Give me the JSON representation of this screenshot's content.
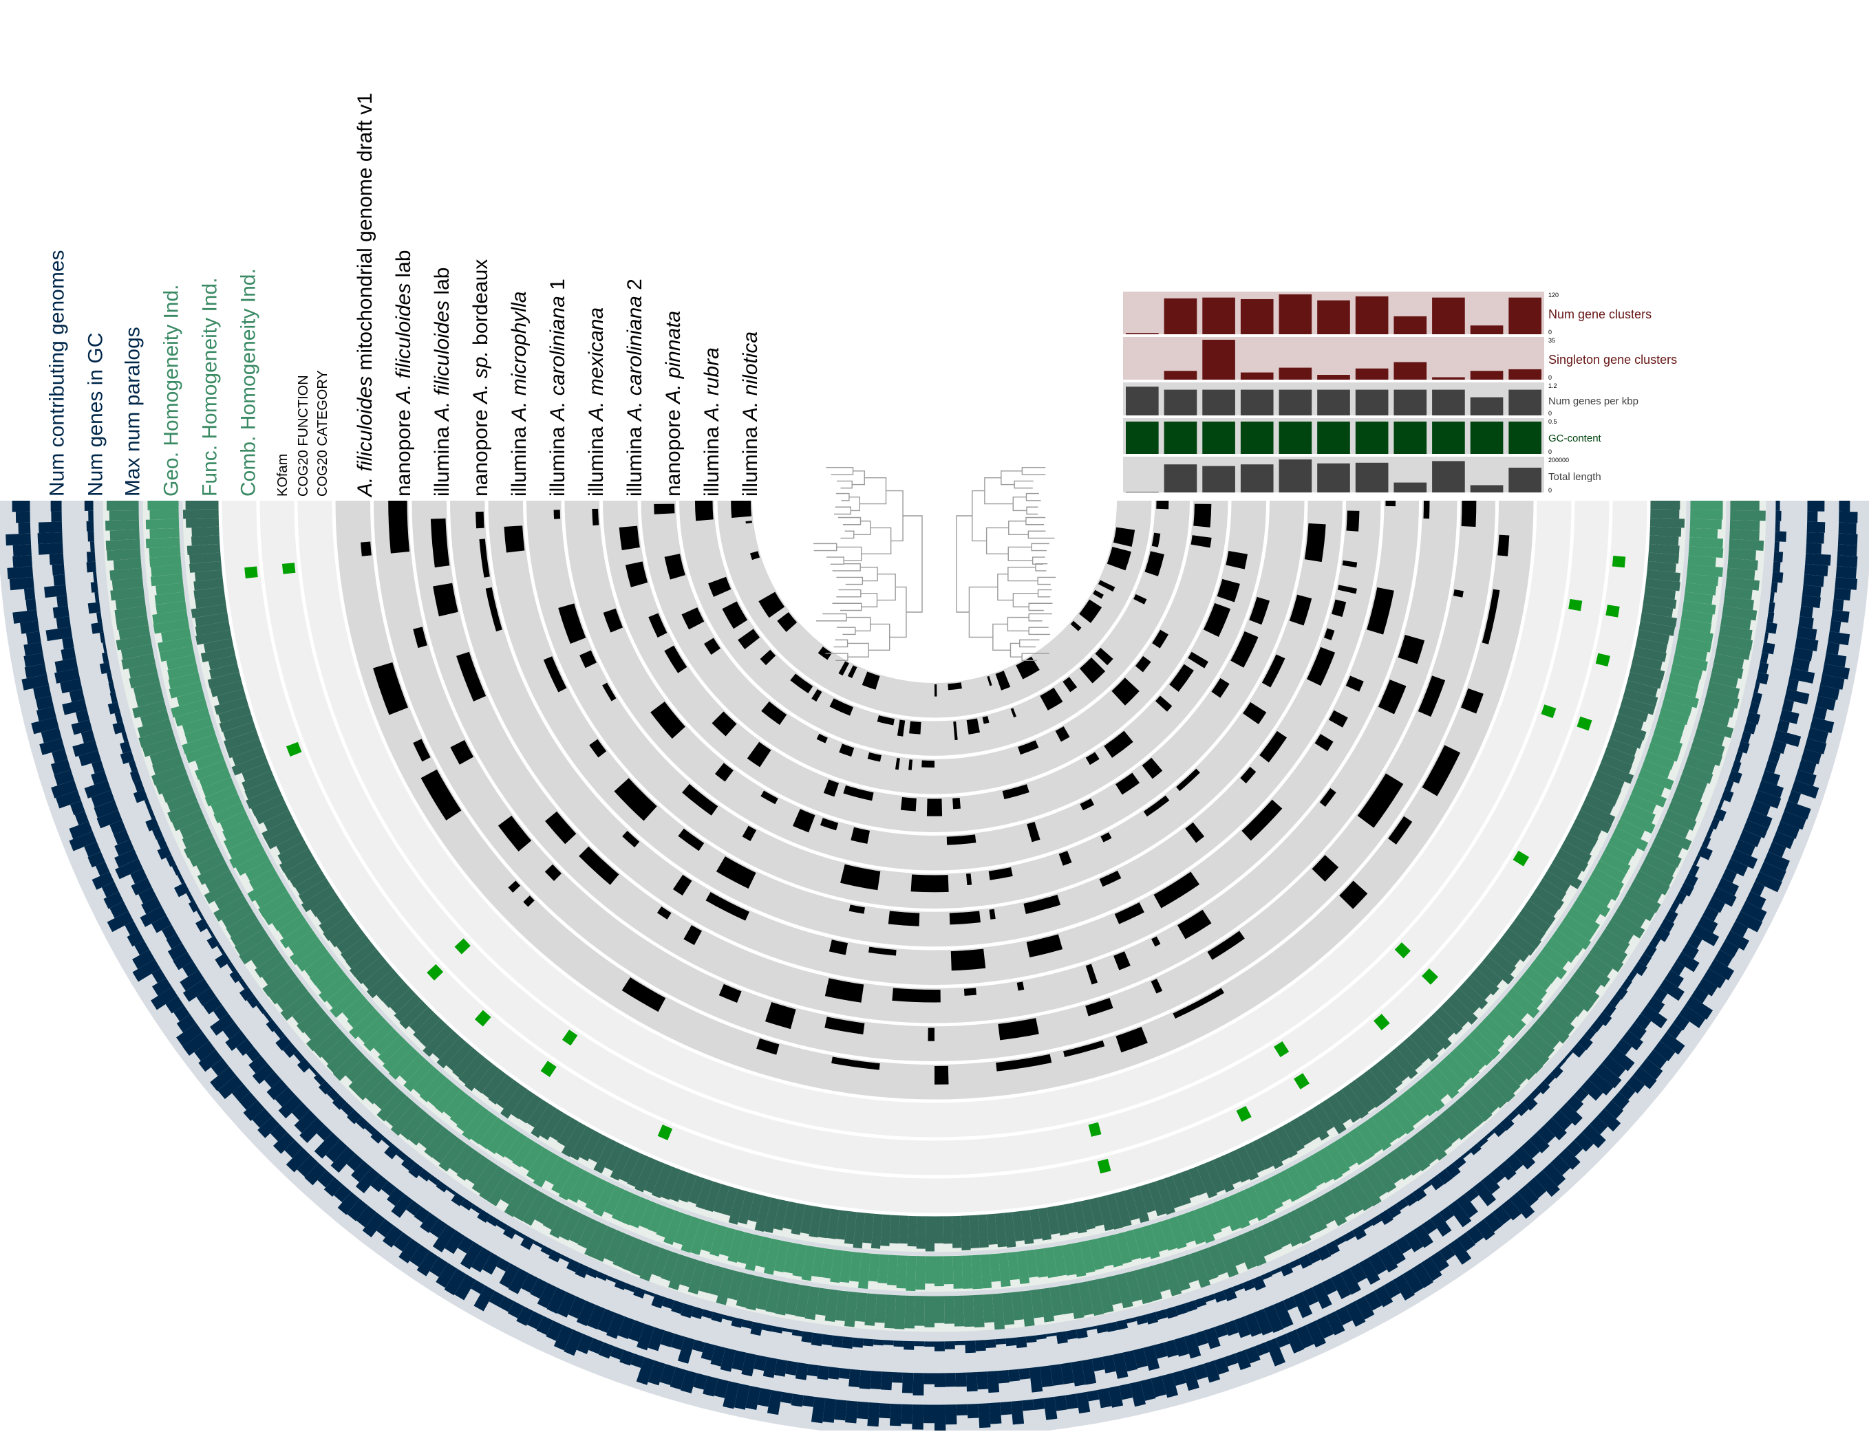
{
  "layer_labels": [
    {
      "id": "num-contributing",
      "text": "Num contributing genomes",
      "color": "#00274a"
    },
    {
      "id": "num-genes-gc",
      "text": "Num genes in GC",
      "color": "#00274a"
    },
    {
      "id": "max-paralogs",
      "text": "Max num paralogs",
      "color": "#00274a"
    },
    {
      "id": "geo-homog",
      "text": "Geo. Homogeneity Ind.",
      "color": "#3a8a64"
    },
    {
      "id": "func-homog",
      "text": "Func. Homogeneity Ind.",
      "color": "#3a8a64"
    },
    {
      "id": "comb-homog",
      "text": "Comb. Homogeneity Ind.",
      "color": "#3a8a64"
    },
    {
      "id": "kofam",
      "text": "KOfam",
      "color": "#000000"
    },
    {
      "id": "cog20-function",
      "text": "COG20 FUNCTION",
      "color": "#000000"
    },
    {
      "id": "cog20-category",
      "text": "COG20 CATEGORY",
      "color": "#000000"
    }
  ],
  "genomes": [
    {
      "italic": "A. filiculoides",
      "rest": " mitochondrial genome draft v1",
      "prefix": ""
    },
    {
      "prefix": "nanopore ",
      "italic": "A. filiculoides",
      "rest": " lab"
    },
    {
      "prefix": "illumina ",
      "italic": "A. filiculoides",
      "rest": " lab"
    },
    {
      "prefix": "nanopore ",
      "italic": "A. sp.",
      "rest": " bordeaux"
    },
    {
      "prefix": "illumina ",
      "italic": "A. microphylla",
      "rest": ""
    },
    {
      "prefix": "illumina ",
      "italic": "A. caroliniana",
      "rest": " 1"
    },
    {
      "prefix": "illumina ",
      "italic": "A. mexicana",
      "rest": ""
    },
    {
      "prefix": "illumina ",
      "italic": "A. caroliniana",
      "rest": " 2"
    },
    {
      "prefix": "nanopore ",
      "italic": "A. pinnata",
      "rest": ""
    },
    {
      "prefix": "illumina ",
      "italic": "A. rubra",
      "rest": ""
    },
    {
      "prefix": "illumina ",
      "italic": "A. nilotica",
      "rest": ""
    }
  ],
  "barplots": [
    {
      "id": "num-gene-clusters",
      "label": "Num gene clusters",
      "max": "120",
      "min": "0",
      "bg": "#dfcccc",
      "fill": "#651414",
      "label_color": "#651414",
      "values": [
        0.03,
        0.9,
        0.92,
        0.88,
        1.0,
        0.85,
        0.95,
        0.45,
        0.92,
        0.22,
        0.92
      ]
    },
    {
      "id": "singleton-gene-clusters",
      "label": "Singleton gene clusters",
      "max": "35",
      "min": "0",
      "bg": "#dfcccc",
      "fill": "#651414",
      "label_color": "#651414",
      "values": [
        0.0,
        0.22,
        1.0,
        0.18,
        0.3,
        0.12,
        0.28,
        0.44,
        0.06,
        0.22,
        0.26
      ]
    },
    {
      "id": "num-genes-per-kbp",
      "label": "Num genes per kbp",
      "max": "1.2",
      "min": "0",
      "bg": "#d9d9d9",
      "fill": "#414141",
      "label_color": "#414141",
      "values": [
        0.95,
        0.85,
        0.85,
        0.85,
        0.85,
        0.85,
        0.85,
        0.85,
        0.85,
        0.6,
        0.85
      ]
    },
    {
      "id": "gc-content",
      "label": "GC-content",
      "max": "0.5",
      "min": "0",
      "bg": "#d9d9d9",
      "fill": "#00440f",
      "label_color": "#00440f",
      "values": [
        0.98,
        0.98,
        0.98,
        0.98,
        0.98,
        0.98,
        0.98,
        0.98,
        0.98,
        0.98,
        0.98
      ]
    },
    {
      "id": "total-length",
      "label": "Total length",
      "max": "200000",
      "min": "0",
      "bg": "#d9d9d9",
      "fill": "#414141",
      "label_color": "#414141",
      "values": [
        0.02,
        0.85,
        0.8,
        0.85,
        1.0,
        0.88,
        0.9,
        0.3,
        0.95,
        0.22,
        0.75
      ]
    }
  ],
  "colors": {
    "outer_bg": "#d8dde3",
    "navy": "#00274a",
    "geo": "#3b8164",
    "func": "#41996d",
    "comb": "#356b5a",
    "green_mark": "#00a000",
    "genome_bg": "#d9d9d9",
    "annot_bg": "#f0f0f0",
    "genome_bar": "#000000"
  }
}
